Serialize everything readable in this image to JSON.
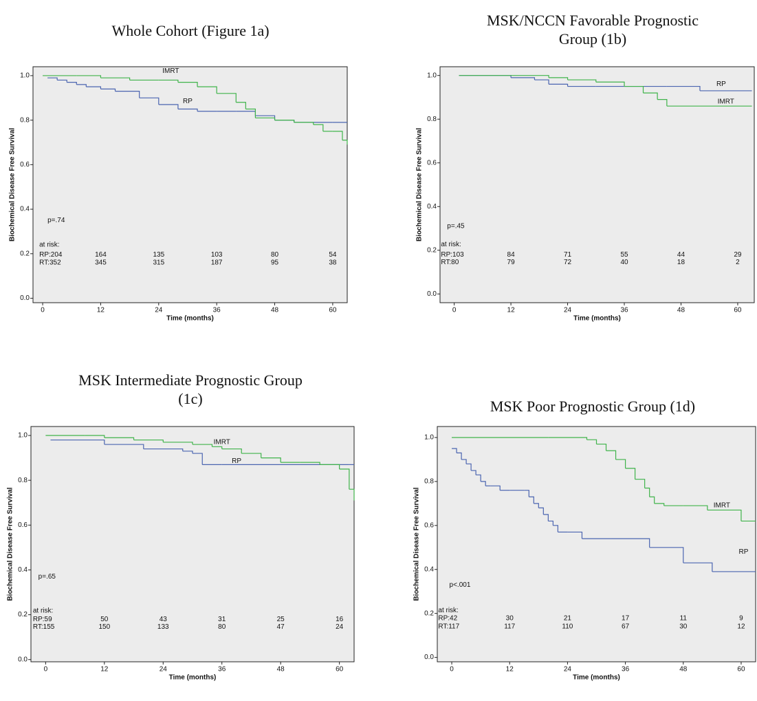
{
  "chart_data": [
    {
      "type": "line",
      "title": "Whole Cohort (Figure 1a)",
      "y_label": "Biochemical Disease Free Survival",
      "x_label": "Time (months)",
      "xlim": [
        -2,
        63
      ],
      "ylim": [
        -0.02,
        1.04
      ],
      "xticks": [
        0,
        12,
        24,
        36,
        48,
        60
      ],
      "yticks": [
        {
          "value": 0,
          "label": "0.0"
        },
        {
          "value": 0.2,
          "label": "0.2"
        },
        {
          "value": 0.4,
          "label": "0.4"
        },
        {
          "value": 0.6,
          "label": "0.6"
        },
        {
          "value": 0.8,
          "label": "0.8"
        },
        {
          "value": 1,
          "label": "1.0"
        }
      ],
      "series": [
        {
          "name": "RP",
          "color": "#4a64b0",
          "x": [
            1,
            3,
            5,
            7,
            9,
            12,
            15,
            20,
            24,
            28,
            32,
            36,
            40,
            44,
            48,
            52,
            56,
            60,
            63
          ],
          "values": [
            0.99,
            0.98,
            0.97,
            0.96,
            0.95,
            0.94,
            0.93,
            0.9,
            0.87,
            0.85,
            0.84,
            0.84,
            0.84,
            0.82,
            0.8,
            0.79,
            0.79,
            0.79,
            0.79
          ]
        },
        {
          "name": "IMRT",
          "color": "#3fb34a",
          "x": [
            0,
            7,
            12,
            18,
            24,
            28,
            32,
            36,
            40,
            42,
            44,
            48,
            52,
            56,
            58,
            60,
            62,
            63
          ],
          "values": [
            1,
            1,
            0.99,
            0.98,
            0.98,
            0.97,
            0.95,
            0.92,
            0.88,
            0.85,
            0.81,
            0.8,
            0.79,
            0.78,
            0.75,
            0.75,
            0.71,
            0.69
          ]
        }
      ],
      "p_value": "p=.74",
      "at_risk_title": "at risk:",
      "at_risk": [
        {
          "label": "RP:204",
          "counts": [
            164,
            135,
            103,
            80,
            54
          ]
        },
        {
          "label": "RT:352",
          "counts": [
            345,
            315,
            187,
            95,
            38
          ]
        }
      ]
    },
    {
      "type": "line",
      "title": "MSK/NCCN Favorable Prognostic Group (1b)",
      "y_label": "Biochemical Disease Free Survival",
      "x_label": "Time (months)",
      "xlim": [
        -3,
        63.5
      ],
      "ylim": [
        -0.04,
        1.04
      ],
      "xticks": [
        0,
        12,
        24,
        36,
        48,
        60
      ],
      "yticks": [
        {
          "value": 0,
          "label": "0.0"
        },
        {
          "value": 0.2,
          "label": "0.2"
        },
        {
          "value": 0.4,
          "label": "0.4"
        },
        {
          "value": 0.6,
          "label": "0.6"
        },
        {
          "value": 0.8,
          "label": "0.8"
        },
        {
          "value": 1,
          "label": "1.0"
        }
      ],
      "series": [
        {
          "name": "RP",
          "color": "#4a64b0",
          "x": [
            1,
            12,
            17,
            20,
            24,
            30,
            36,
            45,
            52,
            63
          ],
          "values": [
            1,
            0.99,
            0.98,
            0.96,
            0.95,
            0.95,
            0.95,
            0.95,
            0.93,
            0.93
          ]
        },
        {
          "name": "IMRT",
          "color": "#3fb34a",
          "x": [
            1,
            12,
            20,
            24,
            30,
            36,
            40,
            43,
            45,
            63
          ],
          "values": [
            1,
            1,
            0.99,
            0.98,
            0.97,
            0.95,
            0.92,
            0.89,
            0.86,
            0.86
          ]
        }
      ],
      "p_value": "p=.45",
      "at_risk_title": "at risk:",
      "at_risk": [
        {
          "label": "RP:103",
          "counts": [
            84,
            71,
            55,
            44,
            29
          ]
        },
        {
          "label": "RT:80",
          "counts": [
            79,
            72,
            40,
            18,
            2
          ]
        }
      ]
    },
    {
      "type": "line",
      "title": "MSK Intermediate Prognostic Group (1c)",
      "y_label": "Biochemical Disease Free Survival",
      "x_label": "Time (months)",
      "xlim": [
        -3,
        63
      ],
      "ylim": [
        -0.01,
        1.04
      ],
      "xticks": [
        0,
        12,
        24,
        36,
        48,
        60
      ],
      "yticks": [
        {
          "value": 0,
          "label": "0.0"
        },
        {
          "value": 0.2,
          "label": "0.2"
        },
        {
          "value": 0.4,
          "label": "0.4"
        },
        {
          "value": 0.6,
          "label": "0.6"
        },
        {
          "value": 0.8,
          "label": "0.8"
        },
        {
          "value": 1,
          "label": "1.0"
        }
      ],
      "series": [
        {
          "name": "RP",
          "color": "#4a64b0",
          "x": [
            1,
            12,
            20,
            28,
            30,
            32,
            36,
            62,
            63
          ],
          "values": [
            0.98,
            0.96,
            0.94,
            0.93,
            0.92,
            0.87,
            0.87,
            0.87,
            0.87
          ]
        },
        {
          "name": "IMRT",
          "color": "#3fb34a",
          "x": [
            0,
            8,
            12,
            18,
            24,
            30,
            34,
            36,
            40,
            44,
            48,
            52,
            56,
            60,
            62,
            63
          ],
          "values": [
            1,
            1,
            0.99,
            0.98,
            0.97,
            0.96,
            0.95,
            0.94,
            0.92,
            0.9,
            0.88,
            0.88,
            0.87,
            0.85,
            0.76,
            0.71
          ]
        }
      ],
      "p_value": "p=.65",
      "at_risk_title": "at risk:",
      "at_risk": [
        {
          "label": "RP:59",
          "counts": [
            50,
            43,
            31,
            25,
            16
          ]
        },
        {
          "label": "RT:155",
          "counts": [
            150,
            133,
            80,
            47,
            24
          ]
        }
      ]
    },
    {
      "type": "line",
      "title": "MSK Poor Prognostic Group (1d)",
      "y_label": "Biochemical Disease Free Survival",
      "x_label": "Time (months)",
      "xlim": [
        -3,
        63
      ],
      "ylim": [
        -0.02,
        1.05
      ],
      "xticks": [
        0,
        12,
        24,
        36,
        48,
        60
      ],
      "yticks": [
        {
          "value": 0,
          "label": "0.0"
        },
        {
          "value": 0.2,
          "label": "0.2"
        },
        {
          "value": 0.4,
          "label": "0.4"
        },
        {
          "value": 0.6,
          "label": "0.6"
        },
        {
          "value": 0.8,
          "label": "0.8"
        },
        {
          "value": 1,
          "label": "1.0"
        }
      ],
      "series": [
        {
          "name": "RP",
          "color": "#4a64b0",
          "x": [
            0,
            1,
            2,
            3,
            4,
            5,
            6,
            7,
            8,
            10,
            12,
            15,
            16,
            17,
            18,
            19,
            20,
            21,
            22,
            24,
            27,
            33,
            41,
            48,
            54,
            63
          ],
          "values": [
            0.95,
            0.93,
            0.9,
            0.88,
            0.85,
            0.83,
            0.8,
            0.78,
            0.78,
            0.76,
            0.76,
            0.76,
            0.73,
            0.7,
            0.68,
            0.65,
            0.62,
            0.6,
            0.57,
            0.57,
            0.54,
            0.54,
            0.5,
            0.43,
            0.39,
            0.39
          ]
        },
        {
          "name": "IMRT",
          "color": "#3fb34a",
          "x": [
            0,
            20,
            28,
            30,
            32,
            34,
            36,
            38,
            40,
            41,
            42,
            44,
            48,
            53,
            60,
            63
          ],
          "values": [
            1,
            1,
            0.99,
            0.97,
            0.94,
            0.9,
            0.86,
            0.81,
            0.77,
            0.73,
            0.7,
            0.69,
            0.69,
            0.67,
            0.62,
            0.62
          ]
        }
      ],
      "p_value": "p<.001",
      "at_risk_title": "at risk:",
      "at_risk": [
        {
          "label": "RP:42",
          "counts": [
            30,
            21,
            17,
            11,
            9
          ]
        },
        {
          "label": "RT:117",
          "counts": [
            117,
            110,
            67,
            30,
            12
          ]
        }
      ]
    }
  ]
}
